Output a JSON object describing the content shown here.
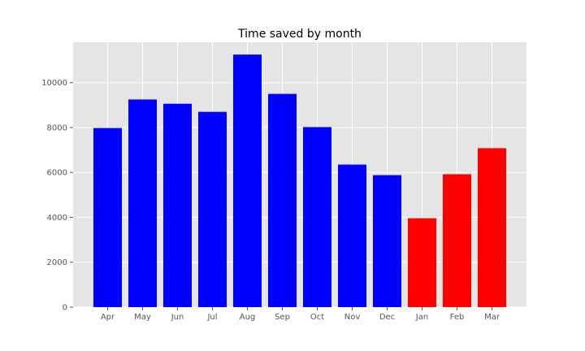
{
  "chart_data": {
    "type": "bar",
    "title": "Time saved by month",
    "xlabel": "",
    "ylabel": "",
    "categories": [
      "Apr",
      "May",
      "Jun",
      "Jul",
      "Aug",
      "Sep",
      "Oct",
      "Nov",
      "Dec",
      "Jan",
      "Feb",
      "Mar"
    ],
    "values": [
      7980,
      9250,
      9060,
      8700,
      11250,
      9500,
      8020,
      6350,
      5880,
      3960,
      5920,
      7080
    ],
    "bar_colors": [
      "#0000ff",
      "#0000ff",
      "#0000ff",
      "#0000ff",
      "#0000ff",
      "#0000ff",
      "#0000ff",
      "#0000ff",
      "#0000ff",
      "#ff0000",
      "#ff0000",
      "#ff0000"
    ],
    "ylim": [
      0,
      11800
    ],
    "yticks": [
      0,
      2000,
      4000,
      6000,
      8000,
      10000
    ],
    "ytick_labels": [
      "0",
      "2000",
      "4000",
      "6000",
      "8000",
      "10000"
    ],
    "grid": true,
    "colors": {
      "plot_background": "#e5e5e5",
      "grid": "#ffffff",
      "tick": "#555555"
    }
  }
}
